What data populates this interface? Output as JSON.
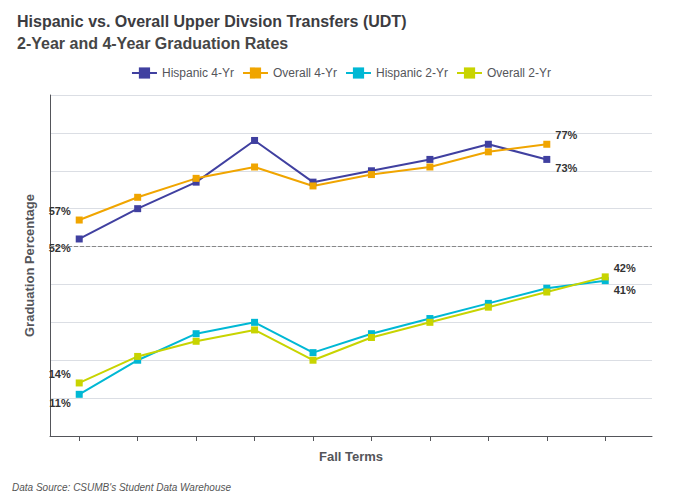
{
  "chart_data": {
    "type": "line",
    "title": "Hispanic vs. Overall Upper Divsion Transfers (UDT)",
    "subtitle": "2-Year and 4-Year Graduation Rates",
    "footnote": "Data Source: CSUMB's Student Data Warehouse",
    "xlabel": "Fall Terms",
    "ylabel": "Graduation Percentage",
    "x": [
      1,
      2,
      3,
      4,
      5,
      6,
      7,
      8,
      9,
      10
    ],
    "series": [
      {
        "name": "Hispanic 4-Yr",
        "color": "#4040a0",
        "values": [
          52,
          60,
          67,
          78,
          67,
          70,
          73,
          77,
          73,
          null
        ],
        "value_labels": [
          "52%",
          null,
          null,
          null,
          null,
          null,
          null,
          null,
          "73%",
          null
        ]
      },
      {
        "name": "Overall 4-Yr",
        "color": "#f0a500",
        "values": [
          57,
          63,
          68,
          71,
          66,
          69,
          71,
          75,
          77,
          null
        ],
        "value_labels": [
          "57%",
          null,
          null,
          null,
          null,
          null,
          null,
          null,
          "77%",
          null
        ]
      },
      {
        "name": "Hispanic 2-Yr",
        "color": "#00b8d4",
        "values": [
          11,
          20,
          27,
          30,
          22,
          27,
          31,
          35,
          39,
          41
        ],
        "value_labels": [
          "11%",
          null,
          null,
          null,
          null,
          null,
          null,
          null,
          null,
          "41%"
        ]
      },
      {
        "name": "Overall 2-Yr",
        "color": "#c8d400",
        "values": [
          14,
          21,
          25,
          28,
          20,
          26,
          30,
          34,
          38,
          42
        ],
        "value_labels": [
          "14%",
          null,
          null,
          null,
          null,
          null,
          null,
          null,
          null,
          "42%"
        ]
      }
    ],
    "marker": "square",
    "xlim": [
      0.5,
      10.8
    ],
    "xticks": [
      1,
      2,
      3,
      4,
      5,
      6,
      7,
      8,
      9,
      10
    ],
    "ylim": [
      0,
      90
    ],
    "yticks": [
      0,
      10,
      20,
      30,
      40,
      50,
      60,
      70,
      80,
      90
    ],
    "grid": true,
    "tick_labels": false,
    "legend": "top",
    "reference_lines": [
      {
        "y": 50,
        "line_style": "dashed"
      }
    ]
  }
}
